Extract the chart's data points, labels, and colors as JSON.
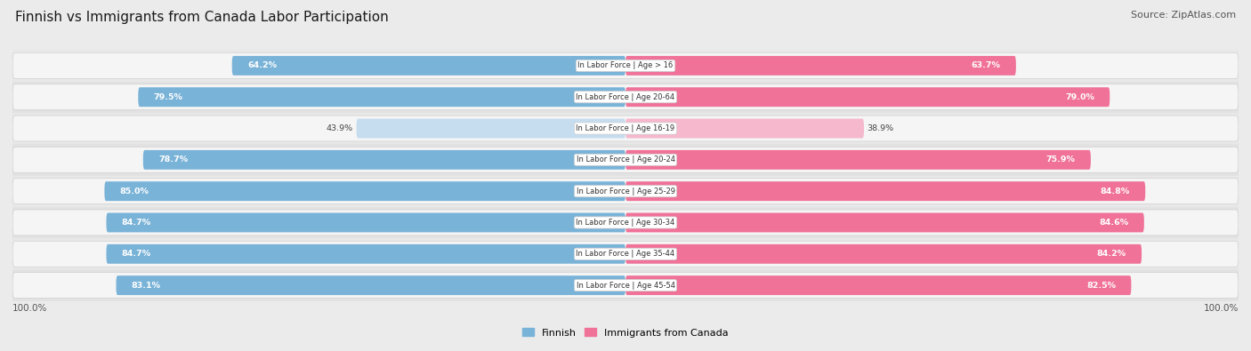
{
  "title": "Finnish vs Immigrants from Canada Labor Participation",
  "source": "Source: ZipAtlas.com",
  "categories": [
    "In Labor Force | Age > 16",
    "In Labor Force | Age 20-64",
    "In Labor Force | Age 16-19",
    "In Labor Force | Age 20-24",
    "In Labor Force | Age 25-29",
    "In Labor Force | Age 30-34",
    "In Labor Force | Age 35-44",
    "In Labor Force | Age 45-54"
  ],
  "finnish_values": [
    64.2,
    79.5,
    43.9,
    78.7,
    85.0,
    84.7,
    84.7,
    83.1
  ],
  "immigrant_values": [
    63.7,
    79.0,
    38.9,
    75.9,
    84.8,
    84.6,
    84.2,
    82.5
  ],
  "finnish_color": "#7ab3d8",
  "finnish_color_light": "#c5ddef",
  "immigrant_color": "#f07298",
  "immigrant_color_light": "#f5b8cc",
  "background_color": "#ebebeb",
  "row_bg_color": "#e0e0e0",
  "pill_bg_color": "#f5f5f5",
  "label_bg_color": "#ffffff",
  "max_value": 100.0,
  "legend_finnish": "Finnish",
  "legend_immigrant": "Immigrants from Canada",
  "title_fontsize": 11,
  "source_fontsize": 8,
  "bar_height": 0.62,
  "figsize": [
    14.06,
    3.95
  ]
}
